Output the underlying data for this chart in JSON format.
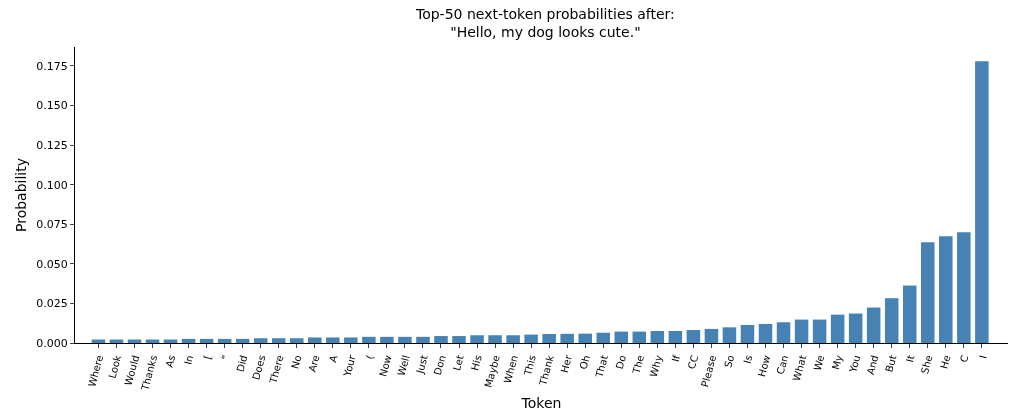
{
  "chart_data": {
    "type": "bar",
    "title": "Top-50 next-token probabilities after:\n\"Hello, my dog looks cute.\"",
    "xlabel": "Token",
    "ylabel": "Probability",
    "categories": [
      "Where",
      "Look",
      "Would",
      "Thanks",
      "As",
      "In",
      "[",
      "\"",
      "Did",
      "Does",
      "There",
      "No",
      "Are",
      "A",
      "Your",
      "(",
      "Now",
      "Well",
      "Just",
      "Don",
      "Let",
      "His",
      "Maybe",
      "When",
      "This",
      "Thank",
      "Her",
      "Oh",
      "That",
      "Do",
      "The",
      "Why",
      "If",
      "CC",
      "Please",
      "So",
      "Is",
      "How",
      "Can",
      "What",
      "We",
      "My",
      "You",
      "And",
      "But",
      "It",
      "She",
      "He",
      "C",
      "I"
    ],
    "values": [
      0.0022,
      0.0022,
      0.0022,
      0.0022,
      0.0022,
      0.0026,
      0.0026,
      0.0026,
      0.0026,
      0.003,
      0.003,
      0.003,
      0.0035,
      0.0035,
      0.0035,
      0.0039,
      0.0039,
      0.0039,
      0.0039,
      0.0044,
      0.0044,
      0.0049,
      0.0049,
      0.0049,
      0.0053,
      0.0057,
      0.0058,
      0.0059,
      0.0065,
      0.0072,
      0.0072,
      0.0076,
      0.0076,
      0.0082,
      0.0089,
      0.0099,
      0.0114,
      0.012,
      0.0131,
      0.0148,
      0.0148,
      0.0179,
      0.0186,
      0.0224,
      0.0283,
      0.0363,
      0.0637,
      0.0675,
      0.07,
      0.178
    ],
    "color": "#4682b4",
    "ylim": [
      0,
      0.187
    ],
    "yticks": [
      {
        "value": 0,
        "label": "0.000"
      },
      {
        "value": 0.025,
        "label": "0.025"
      },
      {
        "value": 0.05,
        "label": "0.050"
      },
      {
        "value": 0.075,
        "label": "0.075"
      },
      {
        "value": 0.1,
        "label": "0.100"
      },
      {
        "value": 0.125,
        "label": "0.125"
      },
      {
        "value": 0.15,
        "label": "0.150"
      },
      {
        "value": 0.175,
        "label": "0.175"
      }
    ]
  }
}
